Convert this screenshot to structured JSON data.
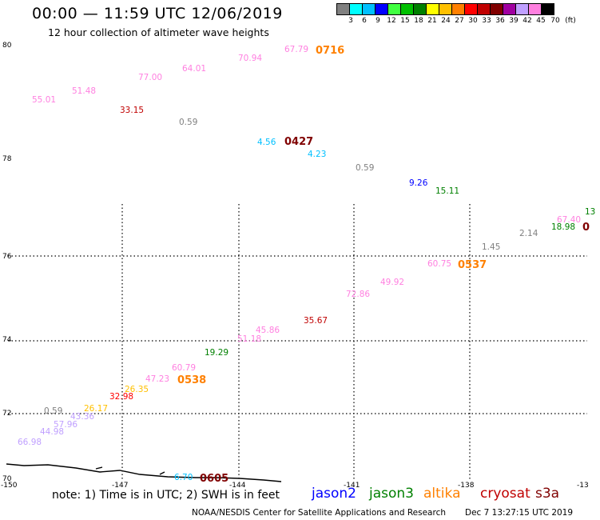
{
  "header": {
    "title": "00:00 — 11:59 UTC 12/06/2019",
    "subtitle": "12 hour collection of altimeter wave heights"
  },
  "scale": {
    "colors": [
      "#808080",
      "#00ffff",
      "#00c0ff",
      "#0000ff",
      "#40ff40",
      "#00c000",
      "#008000",
      "#ffff00",
      "#ffc000",
      "#ff8000",
      "#ff0000",
      "#c00000",
      "#800000",
      "#a000a0",
      "#c0a0ff",
      "#ff80e0",
      "#000000"
    ],
    "labels": [
      "3",
      "6",
      "9",
      "12",
      "15",
      "18",
      "21",
      "24",
      "27",
      "30",
      "33",
      "36",
      "39",
      "42",
      "45",
      "70",
      "(ft)"
    ]
  },
  "axes": {
    "x_ticks": [
      "-150",
      "-147",
      "-144",
      "-141",
      "-138",
      "-13"
    ],
    "y_ticks": [
      "80",
      "78",
      "76",
      "74",
      "72",
      "70"
    ]
  },
  "observations": [
    {
      "text": "67.79",
      "color": "#ff80e0"
    },
    {
      "text": "70.94",
      "color": "#ff80e0"
    },
    {
      "text": "64.01",
      "color": "#ff80e0"
    },
    {
      "text": "77.00",
      "color": "#ff80e0"
    },
    {
      "text": "51.48",
      "color": "#ff80e0"
    },
    {
      "text": "55.01",
      "color": "#ff80e0"
    },
    {
      "text": "33.15",
      "color": "#c00000"
    },
    {
      "text": "0.59",
      "color": "#808080"
    },
    {
      "text": "4.56",
      "color": "#00c0ff"
    },
    {
      "text": "4.23",
      "color": "#00c0ff"
    },
    {
      "text": "0.59",
      "color": "#808080"
    },
    {
      "text": "9.26",
      "color": "#0000ff"
    },
    {
      "text": "15.11",
      "color": "#008000"
    },
    {
      "text": "13",
      "color": "#008000"
    },
    {
      "text": "67.40",
      "color": "#ff80e0"
    },
    {
      "text": "18.98",
      "color": "#008000"
    },
    {
      "text": "2.14",
      "color": "#808080"
    },
    {
      "text": "1.45",
      "color": "#808080"
    },
    {
      "text": "60.75",
      "color": "#ff80e0"
    },
    {
      "text": "49.92",
      "color": "#ff80e0"
    },
    {
      "text": "72.86",
      "color": "#ff80e0"
    },
    {
      "text": "35.67",
      "color": "#c00000"
    },
    {
      "text": "45.86",
      "color": "#ff80e0"
    },
    {
      "text": "51.18",
      "color": "#ff80e0"
    },
    {
      "text": "19.29",
      "color": "#008000"
    },
    {
      "text": "60.79",
      "color": "#ff80e0"
    },
    {
      "text": "47.23",
      "color": "#ff80e0"
    },
    {
      "text": "26.35",
      "color": "#ffc000"
    },
    {
      "text": "32.98",
      "color": "#ff0000"
    },
    {
      "text": "26.17",
      "color": "#ffc000"
    },
    {
      "text": "0.59",
      "color": "#808080"
    },
    {
      "text": "43.36",
      "color": "#c0a0ff"
    },
    {
      "text": "57.96",
      "color": "#c0a0ff"
    },
    {
      "text": "44.98",
      "color": "#c0a0ff"
    },
    {
      "text": "66.98",
      "color": "#c0a0ff"
    },
    {
      "text": "6.70",
      "color": "#00c0ff"
    }
  ],
  "passes": [
    {
      "text": "0716",
      "color": "#ff8000"
    },
    {
      "text": "0427",
      "color": "#800000"
    },
    {
      "text": "0",
      "color": "#800000"
    },
    {
      "text": "0537",
      "color": "#ff8000"
    },
    {
      "text": "0538",
      "color": "#ff8000"
    },
    {
      "text": "0605",
      "color": "#800000"
    }
  ],
  "footer": {
    "note": "note: 1) Time is in UTC; 2) SWH is in feet",
    "legend": [
      {
        "name": "jason2",
        "color": "#0000ff"
      },
      {
        "name": "jason3",
        "color": "#008000"
      },
      {
        "name": "altika",
        "color": "#ff8000"
      },
      {
        "name": "cryosat",
        "color": "#c00000"
      },
      {
        "name": "s3a",
        "color": "#800000"
      }
    ],
    "credit": "NOAA/NESDIS Center for Satellite Applications and Research",
    "timestamp": "Dec  7 13:27:15 UTC 2019"
  }
}
